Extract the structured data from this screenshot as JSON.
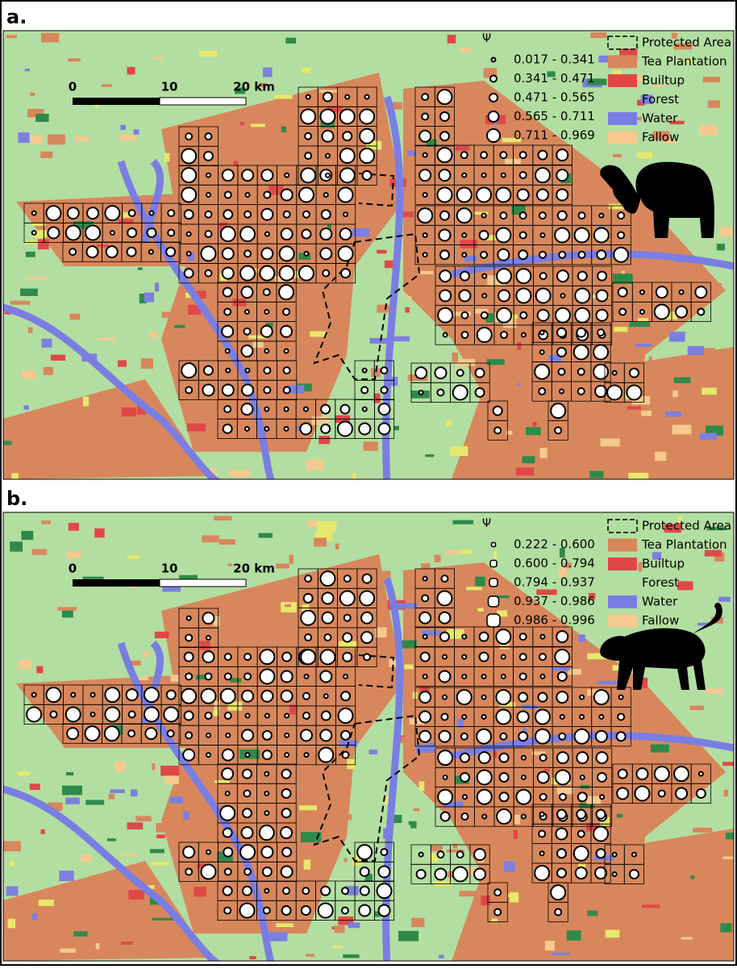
{
  "panels": [
    {
      "label": "a.",
      "scale_bar": [
        "0",
        "10",
        "20 km"
      ],
      "legend": {
        "title": "Ψ",
        "classes": [
          "0.017 - 0.341",
          "0.341 - 0.471",
          "0.471 - 0.565",
          "0.565 - 0.711",
          "0.711 - 0.969"
        ],
        "land_cover": [
          "Protected Area",
          "Tea Plantation",
          "Builtup",
          "Forest",
          "Water",
          "Fallow"
        ]
      }
    },
    {
      "label": "b.",
      "scale_bar": [
        "0",
        "10",
        "20 km"
      ],
      "legend": {
        "title": "Ψ",
        "classes": [
          "0.222 - 0.600",
          "0.600 - 0.794",
          "0.794 - 0.937",
          "0.937 - 0.986",
          "0.986 - 0.996"
        ],
        "land_cover": [
          "Protected Area",
          "Tea Plantation",
          "Builtup",
          "Forest",
          "Water",
          "Fallow"
        ]
      }
    }
  ]
}
